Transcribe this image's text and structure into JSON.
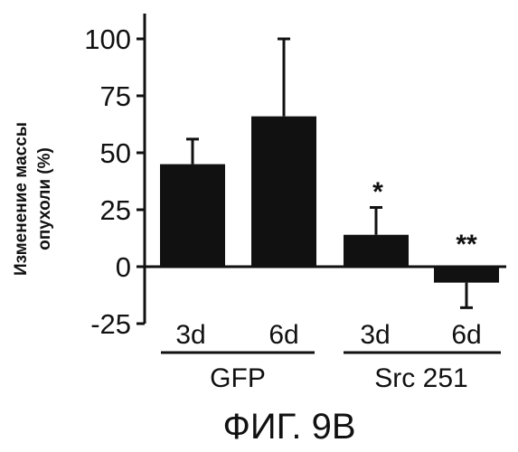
{
  "chart_data": {
    "type": "bar",
    "ylabel_lines": [
      "Изменение массы",
      "опухоли (%)"
    ],
    "yticks": [
      100,
      75,
      50,
      25,
      0,
      -25
    ],
    "ytick_labels": [
      "100",
      "75",
      "50",
      "25",
      "0",
      "-25"
    ],
    "ylim": [
      -25,
      100
    ],
    "bars": [
      {
        "label": "3d",
        "group": "GFP",
        "value": 45,
        "error": 11,
        "error_dir": "up",
        "significance": ""
      },
      {
        "label": "6d",
        "group": "GFP",
        "value": 66,
        "error": 34,
        "error_dir": "up",
        "significance": ""
      },
      {
        "label": "3d",
        "group": "Src 251",
        "value": 14,
        "error": 12,
        "error_dir": "up",
        "significance": "*"
      },
      {
        "label": "6d",
        "group": "Src 251",
        "value": -7,
        "error": 11,
        "error_dir": "down",
        "significance": "**"
      }
    ],
    "groups": [
      "GFP",
      "Src 251"
    ],
    "bar_color": "#111111"
  },
  "figure_label": "ФИГ. 9B"
}
